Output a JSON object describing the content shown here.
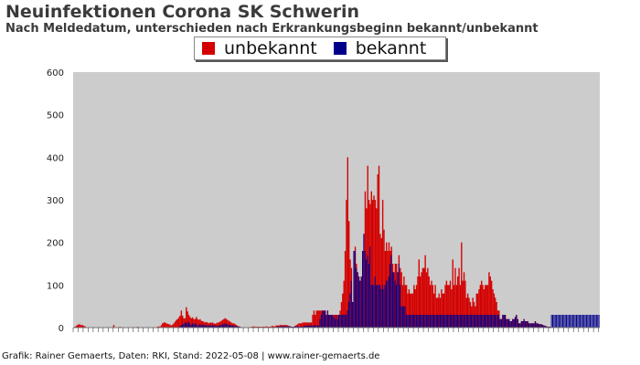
{
  "title": "Neuinfektionen Corona SK Schwerin",
  "subtitle": "Nach Meldedatum, unterschieden nach Erkrankungsbeginn bekannt/unbekannt",
  "footer": "Grafik: Rainer Gemaerts, Daten: RKI, Stand: 2022-05-08 | www.rainer-gemaerts.de",
  "colors": {
    "unbekannt": "#d40000",
    "bekannt": "#00008b",
    "plot_background": "#cccccc"
  },
  "chart_data": {
    "type": "bar",
    "stacked": true,
    "ylim": [
      0,
      600
    ],
    "yticks": [
      0,
      100,
      200,
      300,
      400,
      500,
      600
    ],
    "xlabel": "",
    "ylabel": "",
    "grid": false,
    "legend_position": "top-center",
    "x_tick_labels_legible": false,
    "legend": [
      "unbekannt",
      "bekannt"
    ],
    "series": [
      {
        "name": "unbekannt",
        "values": [
          0,
          2,
          4,
          6,
          8,
          7,
          6,
          6,
          4,
          3,
          1,
          0,
          0,
          0,
          0,
          0,
          0,
          0,
          0,
          0,
          0,
          0,
          0,
          0,
          0,
          0,
          0,
          0,
          0,
          0,
          0,
          0,
          6,
          0,
          0,
          0,
          0,
          2,
          0,
          0,
          0,
          0,
          0,
          0,
          0,
          0,
          0,
          0,
          0,
          0,
          0,
          2,
          0,
          0,
          0,
          0,
          0,
          0,
          0,
          0,
          0,
          0,
          0,
          1,
          0,
          0,
          0,
          2,
          3,
          2,
          6,
          10,
          12,
          12,
          10,
          9,
          8,
          7,
          5,
          7,
          10,
          14,
          18,
          20,
          24,
          28,
          40,
          28,
          22,
          22,
          48,
          38,
          30,
          25,
          22,
          24,
          20,
          20,
          25,
          20,
          18,
          20,
          16,
          15,
          14,
          12,
          13,
          12,
          10,
          12,
          11,
          12,
          10,
          9,
          10,
          12,
          12,
          14,
          16,
          18,
          20,
          22,
          20,
          18,
          16,
          14,
          12,
          10,
          10,
          8,
          6,
          4,
          3,
          2,
          1,
          1,
          1,
          1,
          1,
          1,
          1,
          1,
          2,
          2,
          3,
          2,
          2,
          2,
          2,
          2,
          2,
          2,
          2,
          2,
          3,
          2,
          2,
          2,
          3,
          4,
          3,
          3,
          5,
          5,
          5,
          6,
          6,
          6,
          6,
          6,
          6,
          5,
          4,
          3,
          2,
          2,
          2,
          4,
          6,
          8,
          10,
          10,
          10,
          12,
          12,
          12,
          12,
          12,
          12,
          12,
          12,
          30,
          40,
          30,
          40,
          40,
          40,
          40,
          40,
          40,
          40,
          40,
          30,
          40,
          30,
          30,
          30,
          30,
          30,
          30,
          30,
          30,
          30,
          40,
          60,
          80,
          110,
          180,
          300,
          400,
          250,
          160,
          140,
          60,
          180,
          190,
          150,
          130,
          120,
          110,
          120,
          180,
          220,
          320,
          280,
          380,
          300,
          290,
          320,
          300,
          310,
          300,
          280,
          360,
          380,
          220,
          210,
          300,
          230,
          180,
          200,
          180,
          200,
          180,
          190,
          150,
          130,
          150,
          150,
          130,
          170,
          140,
          130,
          100,
          120,
          100,
          100,
          80,
          90,
          80,
          80,
          80,
          100,
          90,
          100,
          120,
          160,
          120,
          130,
          140,
          140,
          170,
          130,
          140,
          120,
          100,
          110,
          100,
          80,
          100,
          70,
          70,
          80,
          70,
          90,
          80,
          80,
          100,
          110,
          100,
          100,
          110,
          90,
          160,
          100,
          140,
          100,
          120,
          140,
          100,
          200,
          110,
          130,
          110,
          70,
          80,
          70,
          60,
          50,
          70,
          60,
          50,
          80,
          80,
          90,
          100,
          110,
          100,
          90,
          100,
          100,
          100,
          130,
          120,
          110,
          90,
          80,
          70,
          60,
          40,
          40,
          20,
          20,
          30,
          30,
          30,
          20,
          20,
          20,
          15,
          15,
          20,
          20,
          25,
          30,
          20,
          10,
          10,
          15,
          15,
          20,
          15,
          15,
          15,
          10,
          10,
          10,
          10,
          10,
          15,
          10,
          10,
          8,
          8,
          8,
          6,
          5,
          4,
          3,
          2,
          2,
          2
        ]
      },
      {
        "name": "bekannt",
        "values": [
          0,
          0,
          0,
          0,
          0,
          0,
          0,
          0,
          0,
          0,
          0,
          0,
          0,
          0,
          0,
          0,
          0,
          0,
          0,
          0,
          0,
          0,
          0,
          0,
          0,
          0,
          0,
          0,
          0,
          0,
          0,
          0,
          0,
          0,
          0,
          0,
          0,
          0,
          0,
          0,
          0,
          0,
          0,
          0,
          0,
          0,
          0,
          0,
          0,
          0,
          0,
          0,
          0,
          0,
          0,
          0,
          0,
          0,
          0,
          0,
          0,
          0,
          0,
          0,
          0,
          0,
          0,
          0,
          0,
          0,
          0,
          0,
          0,
          0,
          0,
          0,
          0,
          0,
          0,
          0,
          0,
          0,
          0,
          0,
          0,
          4,
          5,
          8,
          8,
          12,
          12,
          10,
          14,
          10,
          6,
          10,
          8,
          10,
          8,
          5,
          5,
          8,
          6,
          6,
          8,
          5,
          5,
          6,
          5,
          5,
          5,
          5,
          6,
          5,
          4,
          4,
          5,
          5,
          6,
          8,
          8,
          10,
          8,
          8,
          6,
          6,
          6,
          5,
          4,
          4,
          4,
          3,
          2,
          2,
          1,
          1,
          1,
          1,
          1,
          1,
          1,
          1,
          1,
          1,
          1,
          1,
          1,
          1,
          1,
          1,
          1,
          1,
          1,
          1,
          1,
          1,
          1,
          1,
          1,
          1,
          1,
          1,
          2,
          2,
          3,
          3,
          3,
          3,
          3,
          3,
          3,
          3,
          3,
          3,
          3,
          3,
          3,
          3,
          3,
          3,
          2,
          2,
          2,
          3,
          4,
          4,
          5,
          5,
          5,
          5,
          5,
          5,
          5,
          5,
          5,
          5,
          5,
          20,
          30,
          50,
          50,
          50,
          40,
          40,
          35,
          30,
          30,
          30,
          25,
          20,
          30,
          20,
          30,
          30,
          30,
          30,
          30,
          30,
          30,
          40,
          60,
          80,
          110,
          180,
          200,
          180,
          140,
          160,
          200,
          230,
          290,
          250,
          300,
          180,
          160,
          170,
          150,
          190,
          100,
          100,
          100,
          120,
          100,
          100,
          100,
          100,
          90,
          100,
          90,
          100,
          110,
          110,
          120,
          150,
          170,
          130,
          150,
          110,
          100,
          150,
          150,
          100,
          50,
          50,
          50,
          50,
          30,
          30,
          30,
          30,
          30,
          30,
          30,
          30,
          30,
          30,
          30,
          30,
          30,
          30,
          30,
          30,
          30,
          30,
          30,
          30,
          30,
          30,
          30,
          30,
          30,
          30,
          30,
          30,
          30,
          30,
          30,
          30,
          30,
          30,
          30,
          30,
          30,
          30,
          30,
          30,
          30,
          30,
          30,
          30,
          30,
          30,
          30,
          30,
          30,
          30,
          30,
          30,
          30,
          30,
          30,
          30,
          30,
          30,
          30,
          30,
          30,
          30,
          30,
          30,
          30,
          30,
          30,
          30,
          30,
          30,
          30,
          30,
          30,
          30,
          30,
          30,
          30,
          30,
          30,
          30,
          30,
          30,
          30,
          30,
          30,
          30,
          30,
          30,
          30,
          30,
          30,
          30,
          30,
          30,
          30,
          30,
          30,
          30,
          30,
          30,
          30,
          30,
          30,
          30,
          30,
          30,
          30,
          30,
          30,
          30,
          30,
          30,
          30,
          30,
          30,
          30,
          30,
          30,
          30,
          30,
          30,
          30,
          30,
          30,
          30,
          30,
          30,
          30,
          30,
          30,
          30,
          30,
          30,
          30,
          30,
          30,
          30,
          30,
          30,
          30,
          30,
          30,
          30,
          30,
          30,
          30,
          30,
          30,
          30,
          30,
          30,
          30,
          30,
          30,
          30
        ]
      }
    ]
  }
}
